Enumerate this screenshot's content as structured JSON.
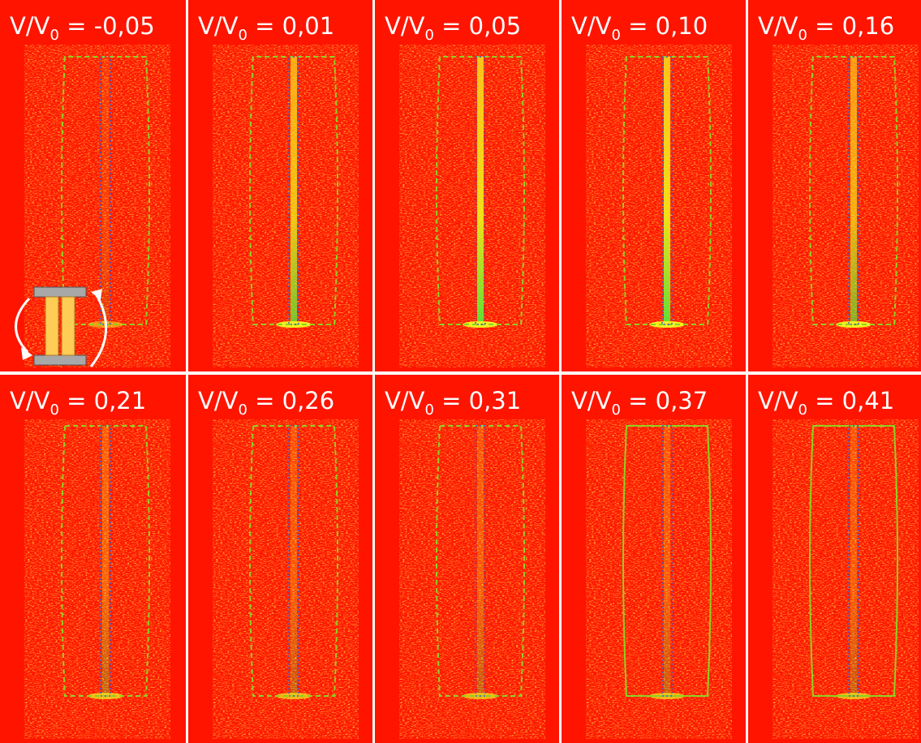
{
  "panels": [
    {
      "label_main": "V/V",
      "label_sub": "0",
      "label_value": " = -0,05"
    },
    {
      "label_main": "V/V",
      "label_sub": "0",
      "label_value": " = 0,01"
    },
    {
      "label_main": "V/V",
      "label_sub": "0",
      "label_value": " = 0,05"
    },
    {
      "label_main": "V/V",
      "label_sub": "0",
      "label_value": " = 0,10"
    },
    {
      "label_main": "V/V",
      "label_sub": "0",
      "label_value": " = 0,16"
    },
    {
      "label_main": "V/V",
      "label_sub": "0",
      "label_value": " = 0,21"
    },
    {
      "label_main": "V/V",
      "label_sub": "0",
      "label_value": " = 0,26"
    },
    {
      "label_main": "V/V",
      "label_sub": "0",
      "label_value": " = 0,31"
    },
    {
      "label_main": "V/V",
      "label_sub": "0",
      "label_value": " = 0,37"
    },
    {
      "label_main": "V/V",
      "label_sub": "0",
      "label_value": " = 0,41"
    }
  ]
}
